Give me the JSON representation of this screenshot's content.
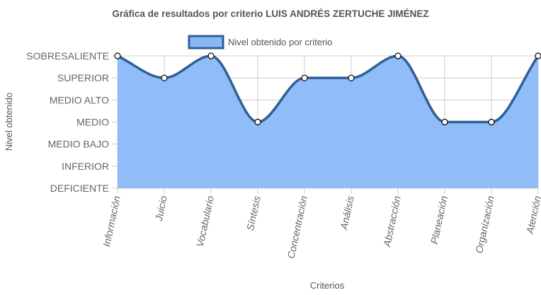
{
  "chart_data": {
    "type": "area",
    "title": "Gráfica de resultados por criterio LUIS ANDRÉS ZERTUCHE JIMÉNEZ",
    "xlabel": "Criterios",
    "ylabel": "Nivel obtenido",
    "y_levels": [
      "DEFICIENTE",
      "INFERIOR",
      "MEDIO BAJO",
      "MEDIO",
      "MEDIO ALTO",
      "SUPERIOR",
      "SOBRESALIENTE"
    ],
    "ylim": [
      0,
      6
    ],
    "categories": [
      "Información",
      "Juicio",
      "Vocabulario",
      "Síntesis",
      "Concentración",
      "Análisis",
      "Abstracción",
      "Planeación",
      "Organización",
      "Atención"
    ],
    "series": [
      {
        "name": "Nivel obtenido por criterio",
        "values": [
          6,
          5,
          6,
          3,
          5,
          5,
          6,
          3,
          3,
          6
        ],
        "labels": [
          "SOBRESALIENTE",
          "SUPERIOR",
          "SOBRESALIENTE",
          "MEDIO",
          "SUPERIOR",
          "SUPERIOR",
          "SOBRESALIENTE",
          "MEDIO",
          "MEDIO",
          "SOBRESALIENTE"
        ]
      }
    ],
    "grid": true,
    "legend_position": "top",
    "colors": {
      "fill": "#8ab8f7",
      "line": "#2f5f93",
      "grid": "#cccccc",
      "point_fill": "#ffffff"
    }
  }
}
